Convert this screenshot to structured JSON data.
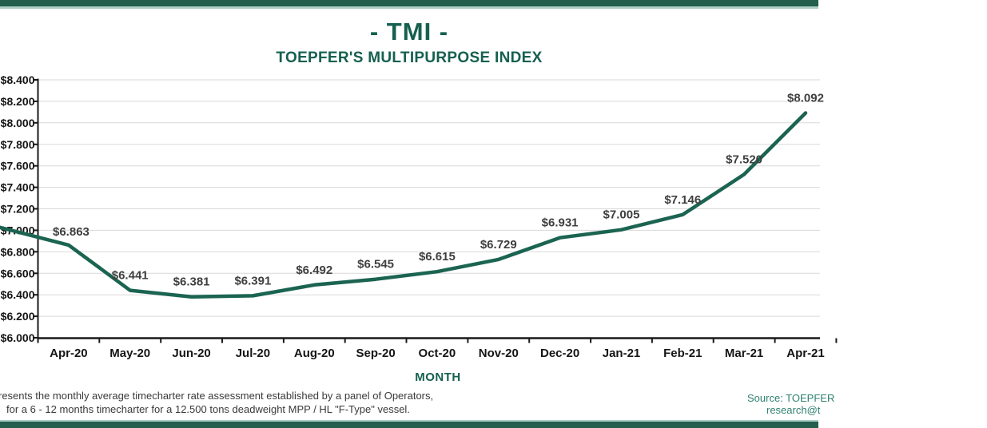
{
  "header": {
    "title": "- TMI -",
    "subtitle": "TOEPFER'S MULTIPURPOSE INDEX"
  },
  "chart_data": {
    "type": "line",
    "title": "- TMI -",
    "subtitle": "TOEPFER'S MULTIPURPOSE INDEX",
    "xlabel": "MONTH",
    "ylabel": "",
    "categories": [
      "Apr-20",
      "May-20",
      "Jun-20",
      "Jul-20",
      "Aug-20",
      "Sep-20",
      "Oct-20",
      "Nov-20",
      "Dec-20",
      "Jan-21",
      "Feb-21",
      "Mar-21",
      "Apr-21"
    ],
    "values": [
      6.863,
      6.441,
      6.381,
      6.391,
      6.492,
      6.545,
      6.615,
      6.729,
      6.931,
      7.005,
      7.146,
      7.52,
      8.092
    ],
    "data_labels": [
      "$6.863",
      "$6.441",
      "$6.381",
      "$6.391",
      "$6.492",
      "$6.545",
      "$6.615",
      "$6.729",
      "$6.931",
      "$7.005",
      "$7.146",
      "$7.520",
      "$8.092"
    ],
    "ylim": [
      6.0,
      8.4
    ],
    "ytick_step": 0.2,
    "ytick_labels": [
      "$6.000",
      "$6.200",
      "$6.400",
      "$6.600",
      "$6.800",
      "$7.000",
      "$7.200",
      "$7.400",
      "$7.600",
      "$7.800",
      "$8.000",
      "$8.200",
      "$8.400"
    ],
    "grid": true,
    "legend": "none",
    "line_color": "#1b6451",
    "left_edge_value": 7.033
  },
  "footer": {
    "left_line1": "resents the monthly average timecharter rate assessment established by a panel of Operators,",
    "left_line2": "for a 6 - 12 months timecharter for a 12.500 tons deadweight MPP / HL \"F-Type\" vessel.",
    "right_line1": "Source: TOEPFER",
    "right_line2": "research@t"
  },
  "colors": {
    "bar_dark_green": "#245e4d",
    "bar_light_green": "#aecfc6",
    "title_green": "#15604f",
    "line_green": "#1b6451",
    "data_label_gray": "#3f3f3f",
    "source_teal": "#2e8070",
    "grid_gray": "#d9d9d9"
  }
}
